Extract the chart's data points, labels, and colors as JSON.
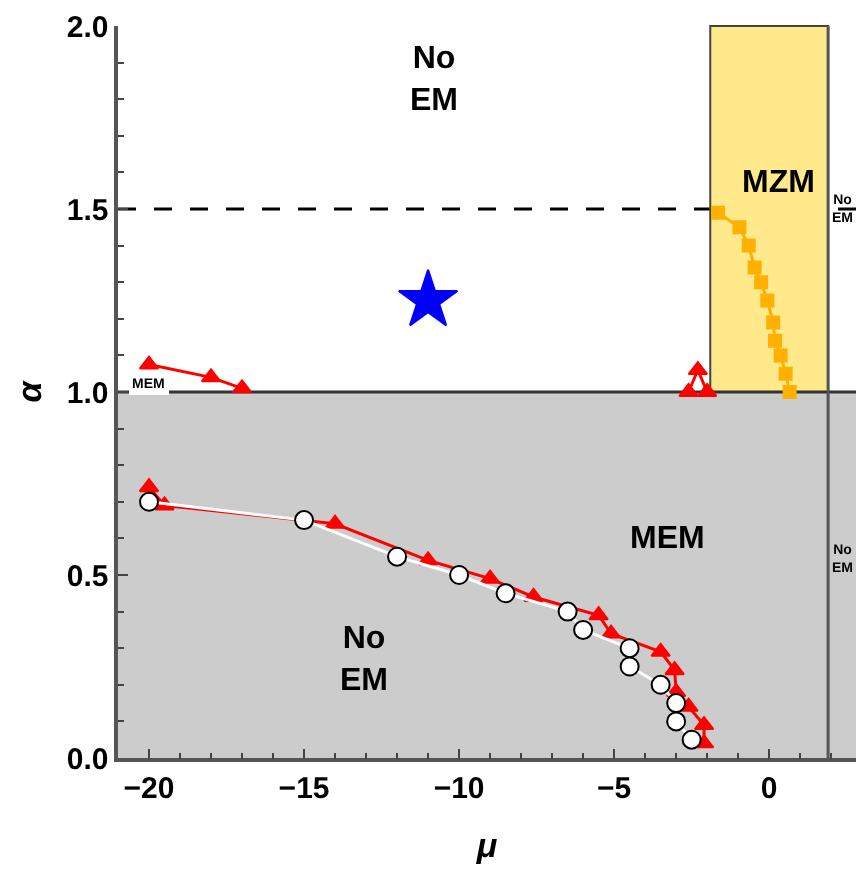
{
  "chart_data": {
    "type": "line",
    "xlabel": "μ",
    "ylabel": "α",
    "xlim": [
      -21,
      2.8
    ],
    "xticks": [
      -20,
      -15,
      -10,
      -5,
      0
    ],
    "ylim": [
      0,
      2
    ],
    "yticks": [
      {
        "value": 0,
        "label": "0.0"
      },
      {
        "value": 0.5,
        "label": "0.5"
      },
      {
        "value": 1,
        "label": "1.0"
      },
      {
        "value": 1.5,
        "label": "1.5"
      },
      {
        "value": 2,
        "label": "2.0"
      }
    ],
    "grid": false,
    "bands": [
      {
        "axis": "x",
        "from": -1.9,
        "to": 1.9,
        "color": "#ffe98a"
      },
      {
        "axis": "y",
        "from": 0,
        "to": 1,
        "color": "#cccccc"
      }
    ],
    "ref_lines": [
      {
        "axis": "y",
        "value": 1.5,
        "color": "#000000",
        "line_style": "dashed"
      },
      {
        "axis": "y",
        "value": 1,
        "color": "#333333",
        "line_style": "solid"
      },
      {
        "axis": "x",
        "value": 1.9,
        "color": "#555555",
        "line_style": "solid"
      }
    ],
    "series": [
      {
        "color": "#ff0000",
        "marker": "triangle",
        "x": [
          -20,
          -19.5,
          -14,
          -11,
          -9,
          -7.6,
          -5.5,
          -5.1,
          -3.5,
          -3.05,
          -3,
          -2.6,
          -2.1,
          -2.1
        ],
        "values": [
          0.74,
          0.69,
          0.64,
          0.54,
          0.49,
          0.44,
          0.39,
          0.34,
          0.29,
          0.24,
          0.18,
          0.14,
          0.09,
          0.04
        ]
      },
      {
        "color": "#ffffff",
        "marker": "circle",
        "x": [
          -20,
          -15,
          -12,
          -10,
          -8.5,
          -6.5,
          -6,
          -4.5,
          -4.5,
          -3.5,
          -3,
          -3,
          -2.5
        ],
        "values": [
          0.7,
          0.65,
          0.55,
          0.5,
          0.45,
          0.4,
          0.35,
          0.3,
          0.25,
          0.2,
          0.15,
          0.1,
          0.05
        ]
      },
      {
        "color": "#ff0000",
        "marker": "triangle",
        "x": [
          -20,
          -18,
          -17
        ],
        "values": [
          1.075,
          1.04,
          1.01
        ]
      },
      {
        "color": "#ff0000",
        "marker": "triangle",
        "x": [
          -2.6,
          -2.3,
          -2.0
        ],
        "values": [
          1.0,
          1.06,
          1.0
        ]
      },
      {
        "color": "#ffb000",
        "marker": "square",
        "x": [
          -1.65,
          -0.96,
          -0.66,
          -0.47,
          -0.26,
          -0.06,
          0.13,
          0.19,
          0.37,
          0.53,
          0.66
        ],
        "values": [
          1.49,
          1.45,
          1.4,
          1.34,
          1.3,
          1.25,
          1.19,
          1.14,
          1.1,
          1.05,
          1.0
        ]
      },
      {
        "type": "scatter",
        "color": "#0000ff",
        "marker": "star",
        "x": [
          -11
        ],
        "values": [
          1.25
        ]
      }
    ],
    "annotations": [
      "No\nEM",
      "MZM",
      {
        "text": "No\nEM",
        "x": 2.4,
        "y": 1.5
      },
      {
        "text": "MEM",
        "x": -20,
        "y": 1.02
      },
      "MEM",
      "No\nEM",
      "No\nEM"
    ]
  }
}
